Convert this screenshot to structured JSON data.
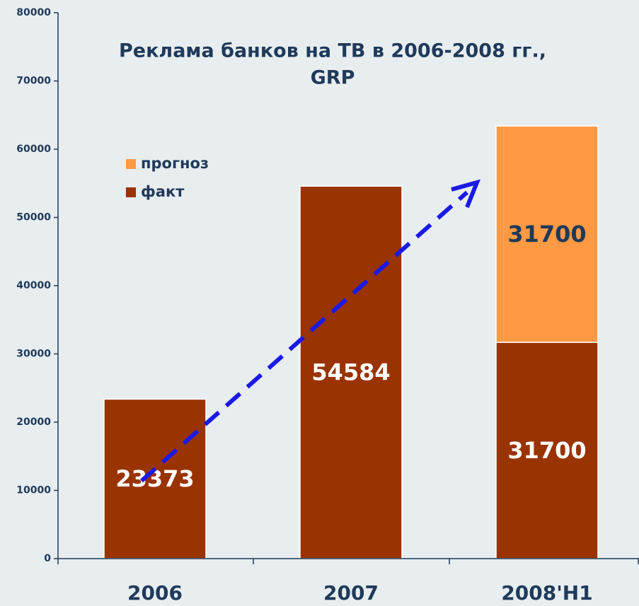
{
  "chart_data": {
    "type": "stacked_bar",
    "title": [
      "Реклама банков на ТВ в 2006-2008 гг.,",
      "GRP"
    ],
    "categories": [
      "2006",
      "2007",
      "2008'H1"
    ],
    "series": [
      {
        "name": "факт",
        "color": "#993300",
        "label_color": "#ffffff",
        "values": [
          23373,
          54584,
          31700
        ]
      },
      {
        "name": "прогноз",
        "color": "#ff9944",
        "label_color": "#1f3a5a",
        "values": [
          null,
          null,
          31700
        ]
      }
    ],
    "ylim": [
      0,
      80000
    ],
    "yticks": [
      0,
      10000,
      20000,
      30000,
      40000,
      50000,
      60000,
      70000,
      80000
    ],
    "legend": "upper left"
  }
}
